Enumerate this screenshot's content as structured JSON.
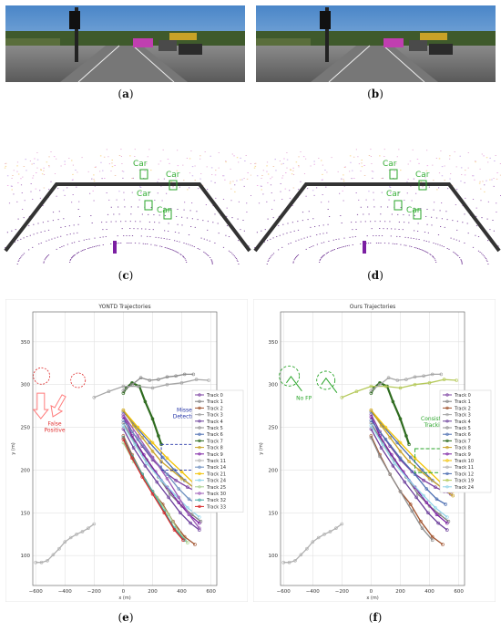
{
  "captions": {
    "a": "a",
    "b": "b",
    "c": "c",
    "d": "d",
    "e": "e",
    "f": "f"
  },
  "lidar_labels": [
    "Car",
    "Car",
    "Car",
    "Car"
  ],
  "charts": {
    "e": {
      "title": "YONTD Trajectories",
      "xlabel": "x (m)",
      "ylabel": "y (m)",
      "xticks": [
        "−600",
        "−400",
        "−200",
        "0",
        "200",
        "400",
        "600"
      ],
      "yticks": [
        "100",
        "150",
        "200",
        "250",
        "300",
        "350"
      ],
      "annotations": {
        "missed": [
          "Missed",
          "Detection"
        ],
        "false_pos": [
          "False",
          "Positive"
        ]
      },
      "legend": [
        "Track 0",
        "Track 1",
        "Track 2",
        "Track 3",
        "Track 4",
        "Track 5",
        "Track 6",
        "Track 7",
        "Track 8",
        "Track 9",
        "Track 11",
        "Track 14",
        "Track 21",
        "Track 24",
        "Track 25",
        "Track 30",
        "Track 32",
        "Track 33"
      ],
      "legend_colors": [
        "#7b3fa0",
        "#7f7f7f",
        "#a0522d",
        "#a6a6a6",
        "#6a3d9a",
        "#8c8c8c",
        "#4b6db1",
        "#2e6b1f",
        "#c9a227",
        "#7b1fa2",
        "#b0b0b0",
        "#6c8ebf",
        "#f2c200",
        "#8fd3e8",
        "#a8d08d",
        "#9b59b6",
        "#40a7a0",
        "#d62728"
      ]
    },
    "f": {
      "title": "Ours Trajectories",
      "xlabel": "x (m)",
      "ylabel": "y (m)",
      "xticks": [
        "−600",
        "−400",
        "−200",
        "0",
        "200",
        "400",
        "600"
      ],
      "yticks": [
        "100",
        "150",
        "200",
        "250",
        "300",
        "350"
      ],
      "annotations": {
        "nofp": [
          "No FP"
        ],
        "consistent": [
          "Consistent",
          "Tracking"
        ]
      },
      "legend": [
        "Track 0",
        "Track 1",
        "Track 2",
        "Track 3",
        "Track 4",
        "Track 5",
        "Track 6",
        "Track 7",
        "Track 8",
        "Track 9",
        "Track 10",
        "Track 11",
        "Track 12",
        "Track 19",
        "Track 24"
      ],
      "legend_colors": [
        "#7b3fa0",
        "#7f7f7f",
        "#a0522d",
        "#a6a6a6",
        "#6a3d9a",
        "#8c8c8c",
        "#4b6db1",
        "#2e6b1f",
        "#c9a227",
        "#7b1fa2",
        "#f2c200",
        "#b0b0b0",
        "#4b6db1",
        "#b5c95a",
        "#8fd3e8"
      ]
    }
  },
  "chart_data": [
    {
      "type": "line",
      "title": "YONTD Trajectories",
      "xlabel": "x (m)",
      "ylabel": "y (m)",
      "xlim": [
        -620,
        640
      ],
      "ylim": [
        65,
        385
      ],
      "series": [
        {
          "name": "Track 0",
          "x": [
            0,
            60,
            130,
            200,
            280,
            360,
            440,
            500,
            545
          ],
          "y": [
            265,
            245,
            228,
            212,
            198,
            188,
            180,
            175,
            172
          ]
        },
        {
          "name": "Track 1",
          "x": [
            0,
            80,
            160,
            240,
            320,
            400,
            470,
            530
          ],
          "y": [
            255,
            232,
            212,
            192,
            172,
            158,
            148,
            140
          ]
        },
        {
          "name": "Track 2",
          "x": [
            0,
            60,
            130,
            200,
            270,
            340,
            420,
            490
          ],
          "y": [
            240,
            218,
            195,
            175,
            160,
            140,
            122,
            113
          ]
        },
        {
          "name": "Track 4",
          "x": [
            0,
            70,
            150,
            230,
            310,
            390,
            460,
            520
          ],
          "y": [
            248,
            226,
            205,
            186,
            168,
            150,
            138,
            130
          ]
        },
        {
          "name": "Track 6",
          "x": [
            0,
            90,
            180,
            270,
            350,
            420,
            480,
            535
          ],
          "y": [
            268,
            250,
            232,
            215,
            200,
            188,
            180,
            178
          ]
        },
        {
          "name": "Track 7",
          "x": [
            0,
            20,
            60,
            110,
            150,
            200,
            240,
            260
          ],
          "y": [
            290,
            296,
            302,
            298,
            280,
            260,
            240,
            230
          ]
        },
        {
          "name": "Track 9",
          "x": [
            0,
            60,
            140,
            220,
            300,
            380,
            450,
            520
          ],
          "y": [
            262,
            240,
            218,
            198,
            180,
            162,
            148,
            138
          ]
        },
        {
          "name": "Track 14",
          "x": [
            0,
            100,
            200,
            300,
            380,
            450,
            510
          ],
          "y": [
            258,
            236,
            214,
            195,
            178,
            166,
            160
          ]
        },
        {
          "name": "Track 21",
          "x": [
            0,
            100,
            200,
            300,
            400,
            480,
            560
          ],
          "y": [
            270,
            250,
            232,
            214,
            198,
            185,
            175
          ]
        },
        {
          "name": "Track 24",
          "x": [
            0,
            80,
            160,
            260,
            360,
            440,
            520
          ],
          "y": [
            252,
            230,
            208,
            188,
            170,
            156,
            145
          ]
        },
        {
          "name": "Track 25",
          "x": [
            0,
            70,
            150,
            230,
            310,
            380,
            440
          ],
          "y": [
            232,
            210,
            188,
            168,
            148,
            128,
            115
          ]
        },
        {
          "name": "Track 30",
          "x": [
            0,
            100,
            200,
            300,
            380,
            450,
            520
          ],
          "y": [
            265,
            240,
            215,
            190,
            168,
            148,
            132
          ]
        },
        {
          "name": "Track 32",
          "x": [
            0,
            60,
            130,
            200,
            280,
            350,
            420
          ],
          "y": [
            238,
            216,
            195,
            175,
            152,
            132,
            118
          ]
        },
        {
          "name": "Track 33",
          "x": [
            0,
            60,
            130,
            200,
            280,
            350,
            410
          ],
          "y": [
            236,
            214,
            192,
            172,
            150,
            130,
            118
          ]
        },
        {
          "name": "Track 3",
          "x": [
            -200,
            -100,
            0,
            100,
            200,
            300,
            400,
            500,
            585
          ],
          "y": [
            285,
            292,
            298,
            298,
            296,
            300,
            302,
            306,
            305
          ]
        },
        {
          "name": "Track 8",
          "x": [
            0,
            70,
            130,
            200,
            260,
            330,
            400,
            480,
            560
          ],
          "y": [
            270,
            252,
            238,
            222,
            210,
            200,
            190,
            180,
            170
          ]
        },
        {
          "name": "Track 5",
          "x": [
            0,
            60,
            120,
            180,
            240,
            300,
            360,
            420,
            480
          ],
          "y": [
            293,
            300,
            308,
            305,
            306,
            309,
            310,
            312,
            312
          ]
        },
        {
          "name": "Track 11",
          "x": [
            -600,
            -560,
            -520,
            -480,
            -440,
            -400,
            -360,
            -320,
            -280,
            -240,
            -200
          ],
          "y": [
            92,
            92,
            94,
            101,
            108,
            116,
            121,
            125,
            128,
            132,
            137
          ]
        }
      ]
    },
    {
      "type": "line",
      "title": "Ours Trajectories",
      "xlabel": "x (m)",
      "ylabel": "y (m)",
      "xlim": [
        -620,
        640
      ],
      "ylim": [
        65,
        385
      ],
      "series": [
        {
          "name": "Track 0",
          "x": [
            0,
            60,
            130,
            200,
            280,
            360,
            440,
            500,
            545
          ],
          "y": [
            265,
            245,
            228,
            212,
            198,
            188,
            180,
            175,
            172
          ]
        },
        {
          "name": "Track 1",
          "x": [
            0,
            80,
            160,
            240,
            320,
            400,
            470,
            530
          ],
          "y": [
            255,
            232,
            212,
            192,
            172,
            158,
            148,
            140
          ]
        },
        {
          "name": "Track 2",
          "x": [
            0,
            60,
            130,
            200,
            270,
            340,
            420,
            490
          ],
          "y": [
            240,
            218,
            195,
            175,
            160,
            140,
            122,
            113
          ]
        },
        {
          "name": "Track 4",
          "x": [
            0,
            70,
            150,
            230,
            310,
            390,
            460,
            520
          ],
          "y": [
            248,
            226,
            205,
            186,
            168,
            150,
            138,
            130
          ]
        },
        {
          "name": "Track 6",
          "x": [
            0,
            90,
            180,
            270,
            350,
            420,
            480,
            535
          ],
          "y": [
            268,
            250,
            232,
            215,
            200,
            188,
            180,
            178
          ]
        },
        {
          "name": "Track 7",
          "x": [
            0,
            20,
            60,
            110,
            150,
            200,
            240,
            260
          ],
          "y": [
            290,
            296,
            302,
            298,
            280,
            260,
            240,
            230
          ]
        },
        {
          "name": "Track 9",
          "x": [
            0,
            60,
            140,
            220,
            300,
            380,
            450,
            520
          ],
          "y": [
            262,
            240,
            218,
            198,
            180,
            162,
            148,
            138
          ]
        },
        {
          "name": "Track 10",
          "x": [
            0,
            100,
            200,
            300,
            400,
            480,
            560
          ],
          "y": [
            270,
            250,
            232,
            214,
            198,
            185,
            175
          ]
        },
        {
          "name": "Track 12",
          "x": [
            0,
            100,
            200,
            300,
            380,
            450,
            510
          ],
          "y": [
            258,
            236,
            214,
            195,
            178,
            166,
            160
          ]
        },
        {
          "name": "Track 24",
          "x": [
            0,
            80,
            160,
            260,
            360,
            440,
            520
          ],
          "y": [
            252,
            230,
            208,
            188,
            170,
            156,
            145
          ]
        },
        {
          "name": "Track 5",
          "x": [
            0,
            60,
            130,
            200,
            280,
            350,
            420
          ],
          "y": [
            238,
            216,
            195,
            175,
            152,
            132,
            118
          ]
        },
        {
          "name": "Track 19",
          "x": [
            -200,
            -100,
            0,
            100,
            200,
            300,
            400,
            500,
            585
          ],
          "y": [
            285,
            292,
            298,
            298,
            296,
            300,
            302,
            306,
            305
          ]
        },
        {
          "name": "Track 8",
          "x": [
            0,
            70,
            130,
            200,
            260,
            330,
            400,
            480,
            560
          ],
          "y": [
            270,
            252,
            238,
            222,
            210,
            200,
            190,
            180,
            170
          ]
        },
        {
          "name": "Track 3",
          "x": [
            0,
            60,
            120,
            180,
            240,
            300,
            360,
            420,
            480
          ],
          "y": [
            293,
            300,
            308,
            305,
            306,
            309,
            310,
            312,
            312
          ]
        },
        {
          "name": "Track 11",
          "x": [
            -600,
            -560,
            -520,
            -480,
            -440,
            -400,
            -360,
            -320,
            -280,
            -240,
            -200
          ],
          "y": [
            92,
            92,
            94,
            101,
            108,
            116,
            121,
            125,
            128,
            132,
            137
          ]
        }
      ]
    }
  ]
}
